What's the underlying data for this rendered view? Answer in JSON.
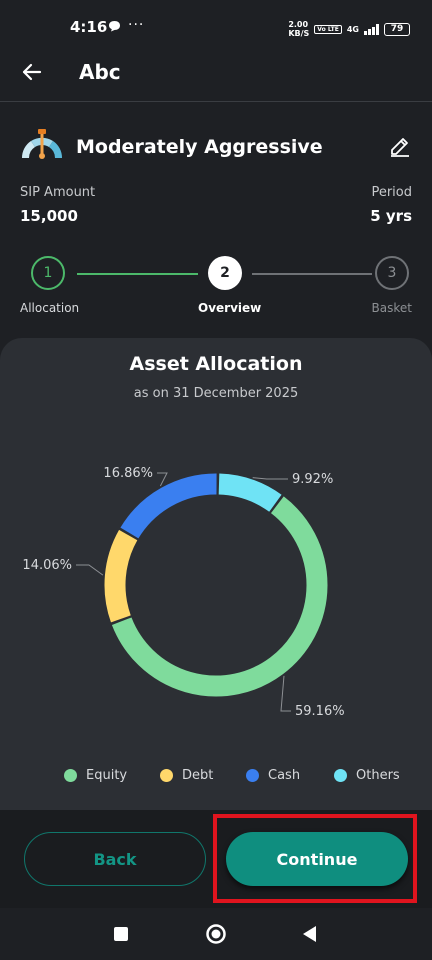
{
  "status_bar": {
    "time": "4:16",
    "message_icon": "chat-bubble-icon",
    "more_dots": "···",
    "speed_value": "2.00",
    "speed_unit": "KB/S",
    "volte": "Vo LTE",
    "network": "4G",
    "battery": "79"
  },
  "app_bar": {
    "title": "Abc",
    "back_icon": "arrow-left-icon"
  },
  "profile": {
    "name": "Moderately Aggressive",
    "icon": "risk-gauge-icon",
    "edit_icon": "pencil-icon",
    "sip_label": "SIP Amount",
    "sip_value": "15,000",
    "period_label": "Period",
    "period_value": "5 yrs"
  },
  "stepper": {
    "steps": [
      {
        "number": "1",
        "label": "Allocation",
        "state": "completed"
      },
      {
        "number": "2",
        "label": "Overview",
        "state": "current"
      },
      {
        "number": "3",
        "label": "Basket",
        "state": "upcoming"
      }
    ]
  },
  "allocation_card": {
    "title": "Asset Allocation",
    "subtitle": "as on 31 December 2025"
  },
  "chart_data": {
    "type": "pie",
    "variant": "donut",
    "categories": [
      "Equity",
      "Debt",
      "Cash",
      "Others"
    ],
    "values": [
      59.16,
      14.06,
      16.86,
      9.92
    ],
    "labels": [
      "59.16%",
      "14.06%",
      "16.86%",
      "9.92%"
    ],
    "colors": [
      "#7fdb9c",
      "#ffd86b",
      "#3a7ff0",
      "#6fe3f5"
    ],
    "legend_position": "bottom"
  },
  "buttons": {
    "back_label": "Back",
    "continue_label": "Continue"
  },
  "colors": {
    "accent": "#0f8e7f",
    "step_done": "#4cb96a",
    "highlight": "#e0141e"
  },
  "nav_bar": {
    "recent_icon": "square-icon",
    "home_icon": "circle-home-icon",
    "back_icon": "triangle-back-icon"
  }
}
